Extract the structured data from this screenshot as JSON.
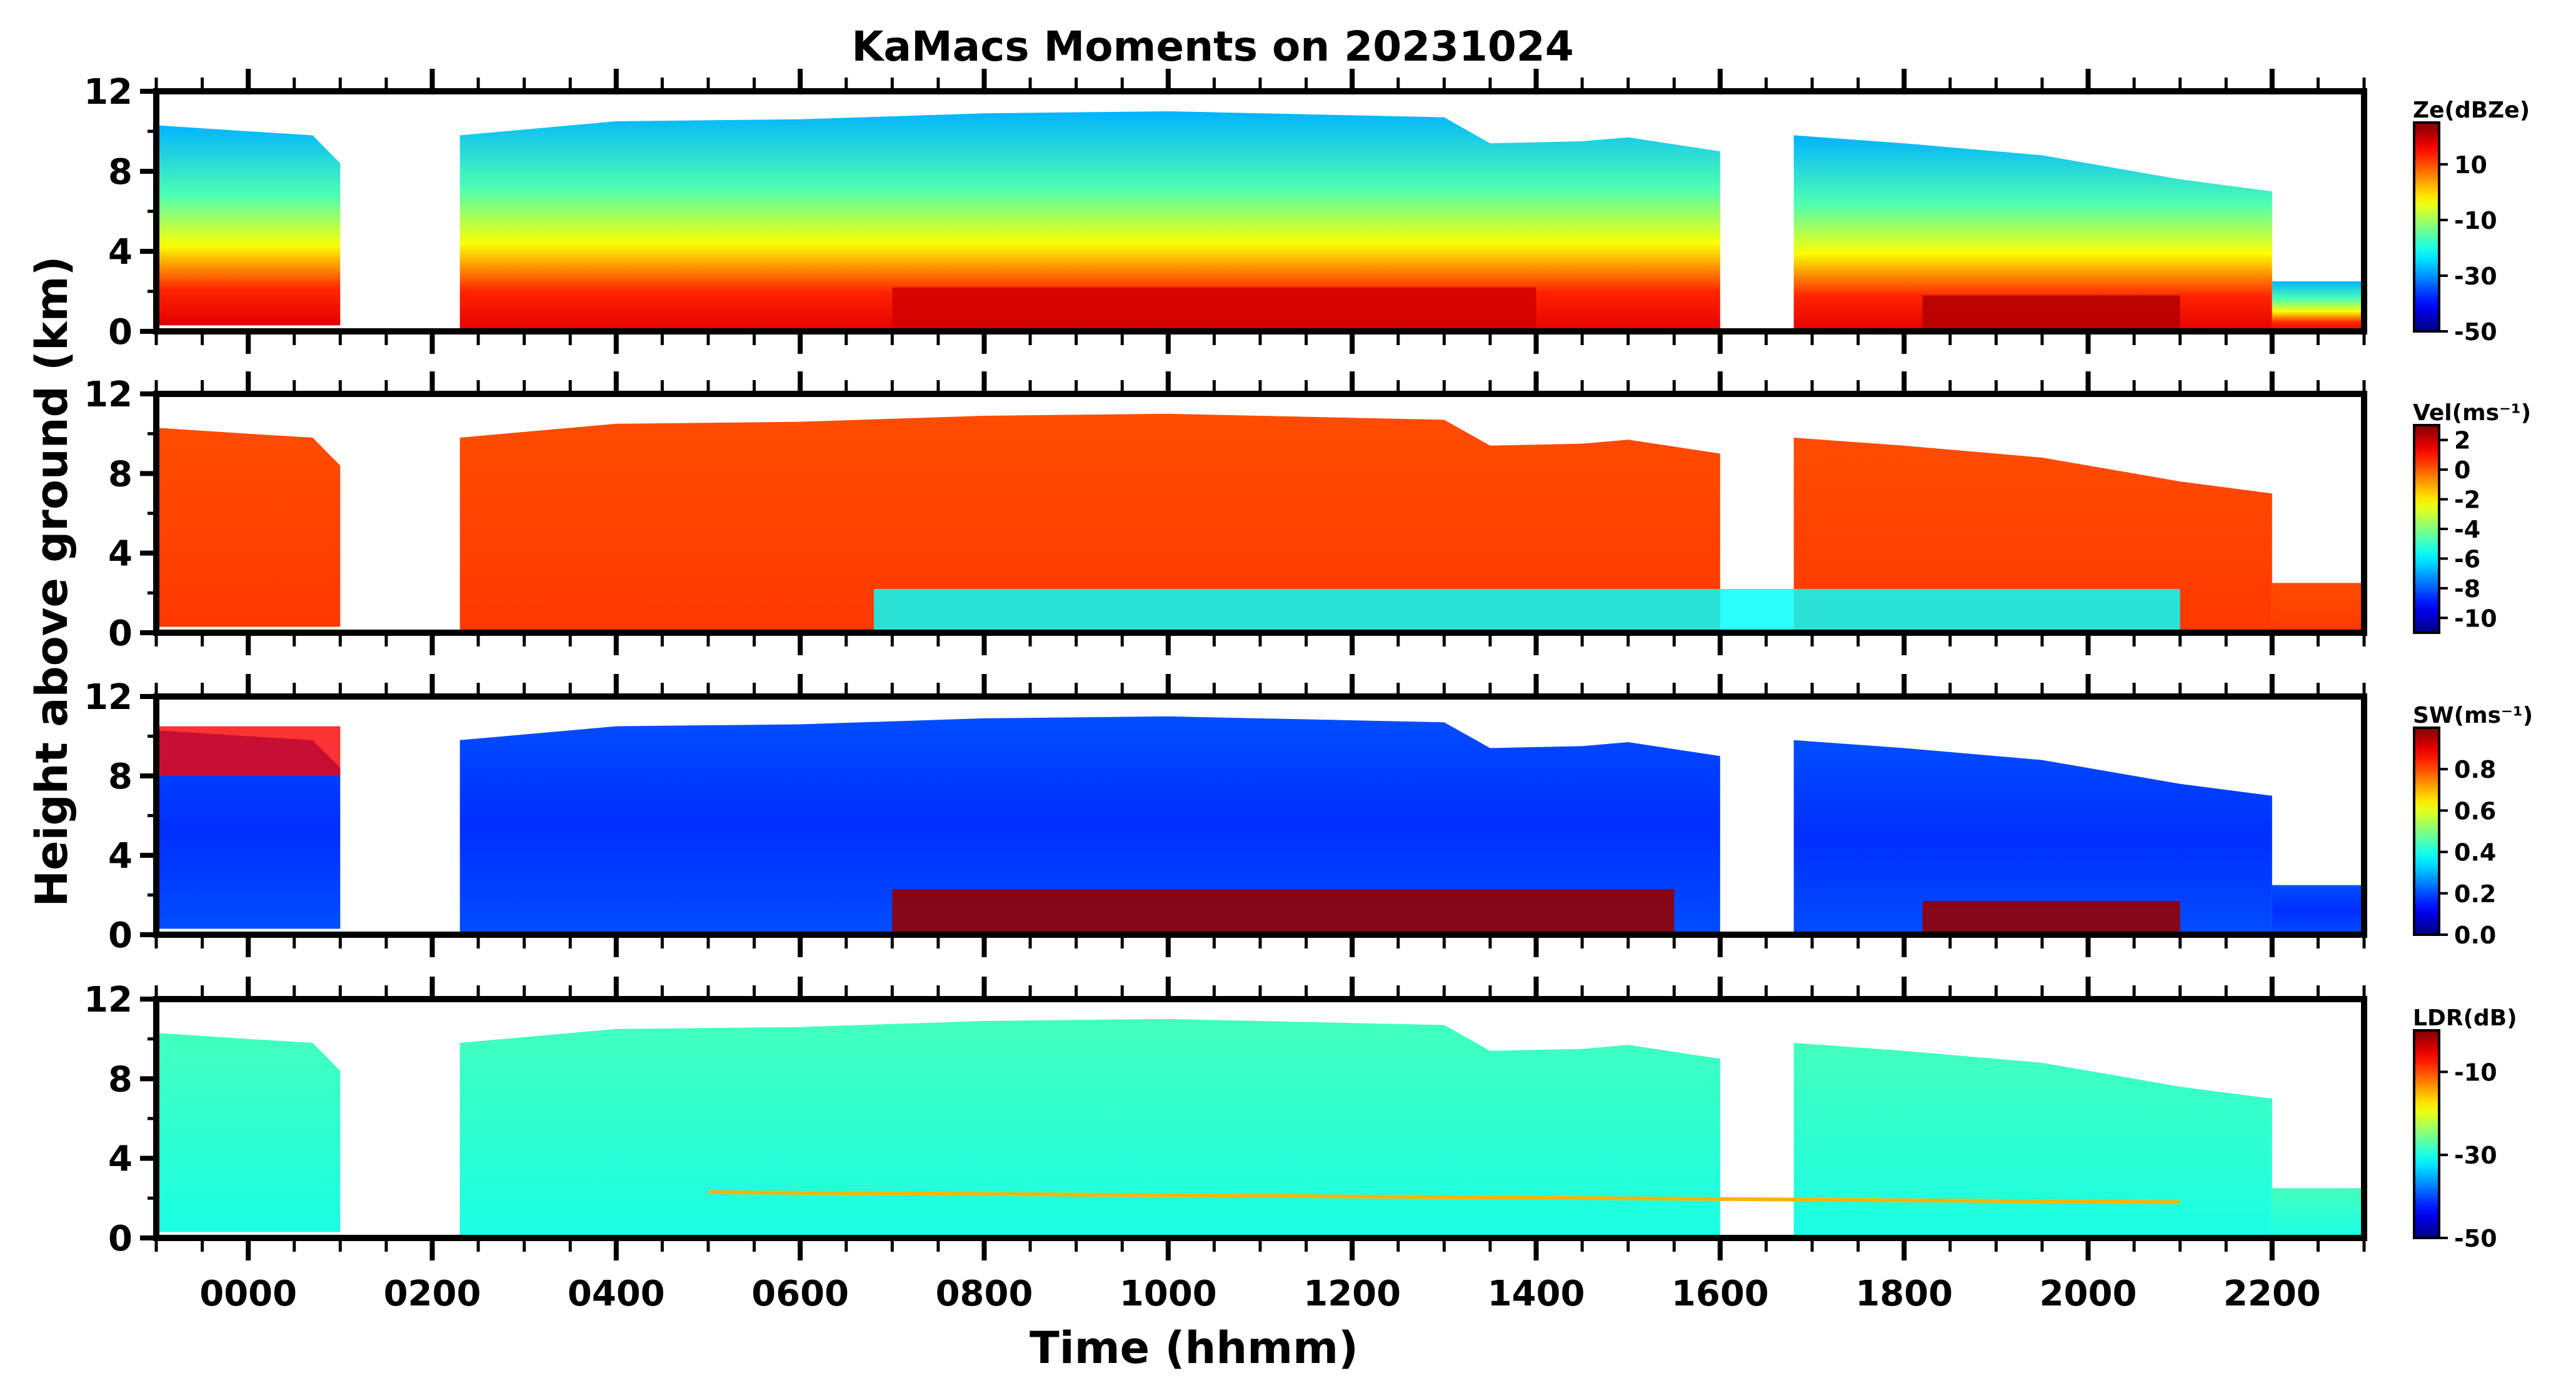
{
  "chart_data": {
    "type": "heatmap",
    "title": "KaMacs Moments on 20231024",
    "xlabel": "Time (hhmm)",
    "ylabel": "Height above ground (km)",
    "xlim": [
      -100,
      2300
    ],
    "xticks": [
      "0000",
      "0200",
      "0400",
      "0600",
      "0800",
      "1000",
      "1200",
      "1400",
      "1600",
      "1800",
      "2000",
      "2200"
    ],
    "xtick_values": [
      0,
      200,
      400,
      600,
      800,
      1000,
      1200,
      1400,
      1600,
      1800,
      2000,
      2200
    ],
    "ylim": [
      0,
      12
    ],
    "yticks": [
      "0",
      "4",
      "8",
      "12"
    ],
    "ytick_values": [
      0,
      4,
      8,
      12
    ],
    "colormap": "jet",
    "panels": [
      {
        "name": "reflectivity",
        "colorbar_label": "Ze(dBZe)",
        "clim": [
          -50,
          25
        ],
        "colorbar_ticks": [
          "10",
          "-10",
          "-30",
          "-50"
        ],
        "colorbar_tick_values": [
          10,
          -10,
          -30,
          -50
        ]
      },
      {
        "name": "velocity",
        "colorbar_label": "Vel(ms⁻¹)",
        "clim": [
          -11,
          3
        ],
        "colorbar_ticks": [
          "2",
          "0",
          "-2",
          "-4",
          "-6",
          "-8",
          "-10"
        ],
        "colorbar_tick_values": [
          2,
          0,
          -2,
          -4,
          -6,
          -8,
          -10
        ]
      },
      {
        "name": "spectrum-width",
        "colorbar_label": "SW(ms⁻¹)",
        "clim": [
          0,
          1.0
        ],
        "colorbar_ticks": [
          "0.8",
          "0.6",
          "0.4",
          "0.2",
          "0.0"
        ],
        "colorbar_tick_values": [
          0.8,
          0.6,
          0.4,
          0.2,
          0.0
        ]
      },
      {
        "name": "ldr",
        "colorbar_label": "LDR(dB)",
        "clim": [
          -50,
          0
        ],
        "colorbar_ticks": [
          "-10",
          "-30",
          "-50"
        ],
        "colorbar_tick_values": [
          -10,
          -30,
          -50
        ]
      }
    ]
  }
}
